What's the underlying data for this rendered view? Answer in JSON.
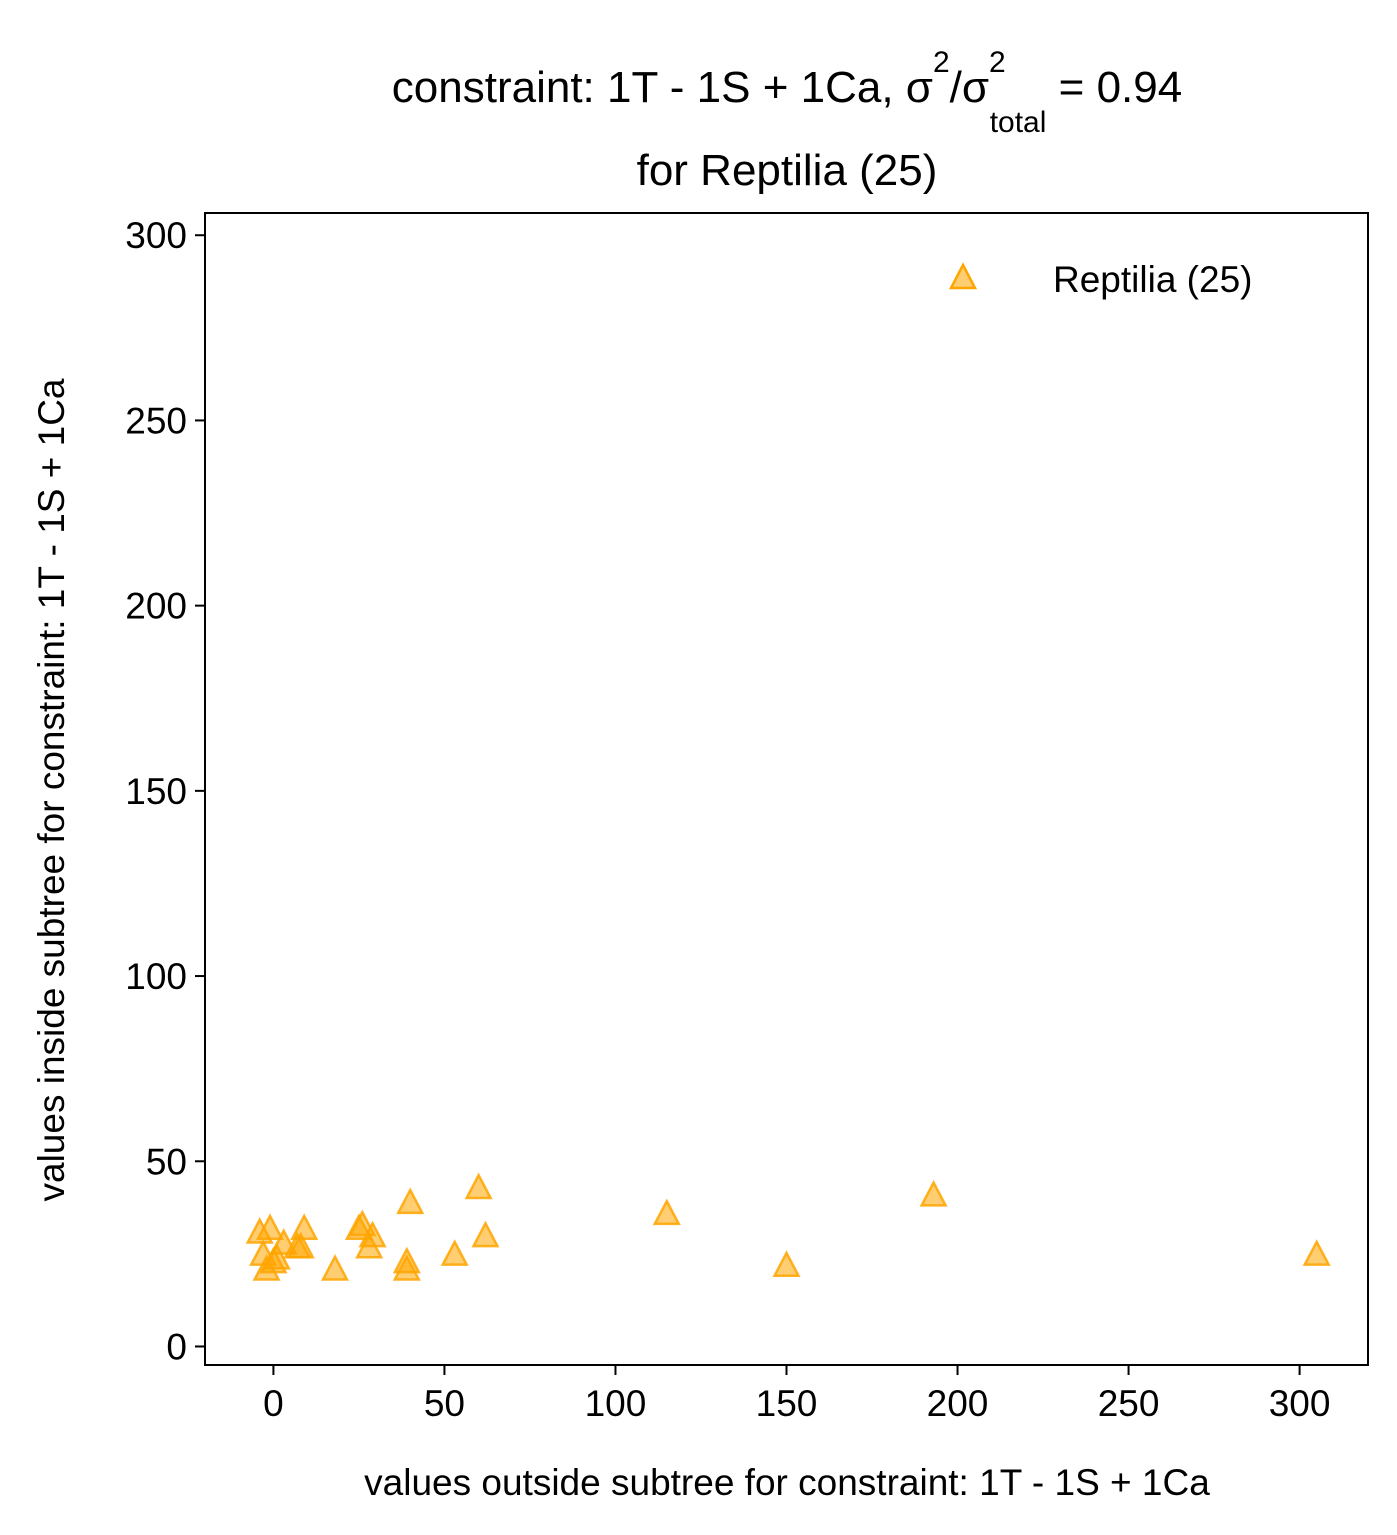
{
  "chart_data": {
    "type": "scatter",
    "title": {
      "main": "constraint: 1T - 1S + 1Ca, σ",
      "sup1": "2",
      "slash": "/σ",
      "sup2": "2",
      "sub": "total",
      "value": " =  0.94",
      "line2": "for Reptilia (25)"
    },
    "xlabel": "values outside subtree for constraint: 1T - 1S + 1Ca",
    "ylabel": "values inside subtree for constraint: 1T - 1S + 1Ca",
    "xlim": [
      -20,
      320
    ],
    "ylim": [
      -5,
      306
    ],
    "xticks": [
      0,
      50,
      100,
      150,
      200,
      250,
      300
    ],
    "yticks": [
      0,
      50,
      100,
      150,
      200,
      250,
      300
    ],
    "grid": false,
    "legend_position": "top-right",
    "series": [
      {
        "name": "Reptilia (25)",
        "marker": "triangle",
        "color": "#FFA500",
        "points": [
          [
            -4,
            31
          ],
          [
            -1,
            32
          ],
          [
            -3,
            25
          ],
          [
            -2,
            21
          ],
          [
            0,
            23
          ],
          [
            3,
            28
          ],
          [
            7,
            27
          ],
          [
            9,
            32
          ],
          [
            8,
            27
          ],
          [
            18,
            21
          ],
          [
            25,
            32
          ],
          [
            26,
            33
          ],
          [
            28,
            27
          ],
          [
            29,
            30
          ],
          [
            39,
            23
          ],
          [
            39,
            21
          ],
          [
            40,
            39
          ],
          [
            53,
            25
          ],
          [
            60,
            43
          ],
          [
            62,
            30
          ],
          [
            115,
            36
          ],
          [
            150,
            22
          ],
          [
            193,
            41
          ],
          [
            305,
            25
          ],
          [
            1,
            24
          ]
        ]
      }
    ]
  }
}
